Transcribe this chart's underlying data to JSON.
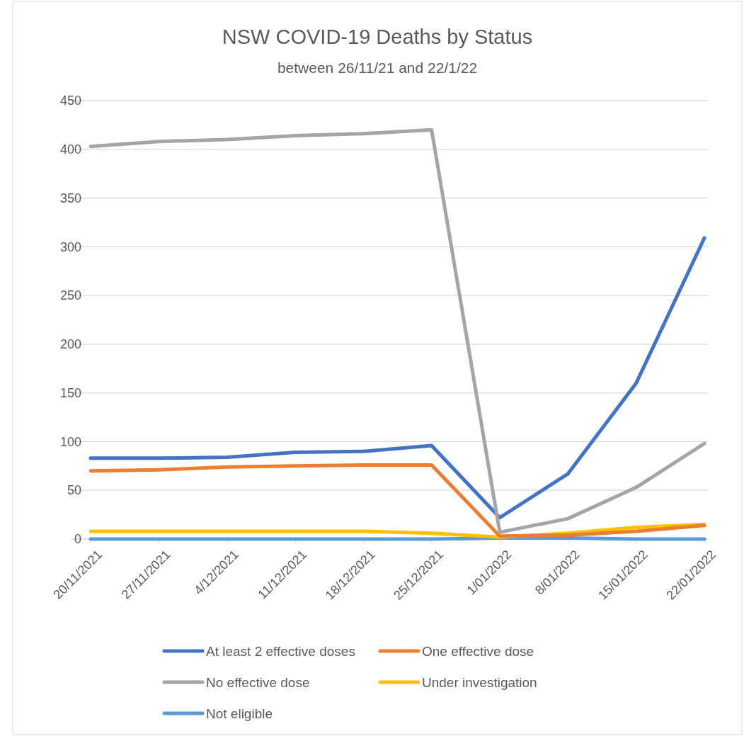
{
  "chart_data": {
    "type": "line",
    "title": "NSW COVID-19 Deaths by Status",
    "subtitle": "between 26/11/21 and 22/1/22",
    "categories": [
      "20/11/2021",
      "27/11/2021",
      "4/12/2021",
      "11/12/2021",
      "18/12/2021",
      "25/12/2021",
      "1/01/2022",
      "8/01/2022",
      "15/01/2022",
      "22/01/2022"
    ],
    "series": [
      {
        "name": "At least 2 effective doses",
        "color": "#4472c4",
        "values": [
          83,
          83,
          84,
          89,
          90,
          96,
          22,
          67,
          160,
          309
        ]
      },
      {
        "name": "One effective dose",
        "color": "#ed7d31",
        "values": [
          70,
          71,
          74,
          75,
          76,
          76,
          3,
          4,
          8,
          14
        ]
      },
      {
        "name": "No effective dose",
        "color": "#a5a5a5",
        "values": [
          403,
          408,
          410,
          414,
          416,
          420,
          7,
          21,
          53,
          98
        ]
      },
      {
        "name": "Under investigation",
        "color": "#ffc000",
        "values": [
          8,
          8,
          8,
          8,
          8,
          6,
          2,
          6,
          12,
          15
        ]
      },
      {
        "name": "Not eligible",
        "color": "#5b9bd5",
        "values": [
          0,
          0,
          0,
          0,
          0,
          0,
          1,
          1,
          0,
          0
        ]
      }
    ],
    "ylim": [
      0,
      450
    ],
    "yticks": [
      0,
      50,
      100,
      150,
      200,
      250,
      300,
      350,
      400,
      450
    ],
    "grid": "y",
    "legend": "bottom",
    "marker": "none",
    "line_style": "solid"
  }
}
